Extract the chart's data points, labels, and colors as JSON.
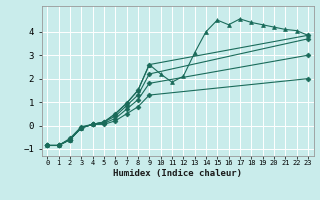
{
  "xlabel": "Humidex (Indice chaleur)",
  "ylabel": "",
  "bg_color": "#c9eceb",
  "grid_color": "#ffffff",
  "line_color": "#1a6b5a",
  "xlim": [
    -0.5,
    23.5
  ],
  "ylim": [
    -1.3,
    5.1
  ],
  "yticks": [
    -1,
    0,
    1,
    2,
    3,
    4
  ],
  "xtick_labels": [
    "0",
    "1",
    "2",
    "3",
    "4",
    "5",
    "6",
    "7",
    "8",
    "9",
    "10",
    "11",
    "12",
    "13",
    "14",
    "15",
    "16",
    "17",
    "18",
    "19",
    "20",
    "21",
    "22",
    "23"
  ],
  "series": [
    {
      "x": [
        0,
        1,
        2,
        3,
        4,
        5,
        6,
        7,
        8,
        9,
        10,
        11,
        12,
        13,
        14,
        15,
        16,
        17,
        18,
        19,
        20,
        21,
        22,
        23
      ],
      "y": [
        -0.85,
        -0.85,
        -0.6,
        -0.1,
        0.05,
        0.15,
        0.5,
        0.95,
        1.5,
        2.6,
        2.2,
        1.85,
        2.1,
        3.1,
        4.0,
        4.5,
        4.3,
        4.55,
        4.4,
        4.3,
        4.2,
        4.1,
        4.05,
        3.85
      ],
      "marker": "^",
      "markersize": 2.8,
      "linestyle": "-"
    },
    {
      "x": [
        0,
        1,
        2,
        3,
        4,
        5,
        6,
        7,
        8,
        9,
        23
      ],
      "y": [
        -0.85,
        -0.85,
        -0.6,
        -0.1,
        0.05,
        0.15,
        0.5,
        0.95,
        1.5,
        2.6,
        3.85
      ],
      "marker": "D",
      "markersize": 2.5,
      "linestyle": "-"
    },
    {
      "x": [
        0,
        1,
        2,
        3,
        4,
        5,
        6,
        7,
        8,
        9,
        23
      ],
      "y": [
        -0.85,
        -0.85,
        -0.6,
        -0.1,
        0.05,
        0.15,
        0.4,
        0.85,
        1.3,
        2.2,
        3.7
      ],
      "marker": "D",
      "markersize": 2.5,
      "linestyle": "-"
    },
    {
      "x": [
        0,
        1,
        2,
        3,
        4,
        5,
        6,
        7,
        8,
        9,
        23
      ],
      "y": [
        -0.85,
        -0.85,
        -0.6,
        -0.1,
        0.05,
        0.1,
        0.3,
        0.7,
        1.1,
        1.8,
        3.0
      ],
      "marker": "D",
      "markersize": 2.5,
      "linestyle": "-"
    },
    {
      "x": [
        0,
        1,
        2,
        3,
        4,
        5,
        6,
        7,
        8,
        9,
        23
      ],
      "y": [
        -0.85,
        -0.85,
        -0.55,
        -0.05,
        0.05,
        0.05,
        0.2,
        0.5,
        0.8,
        1.3,
        2.0
      ],
      "marker": "D",
      "markersize": 2.5,
      "linestyle": "-"
    }
  ]
}
